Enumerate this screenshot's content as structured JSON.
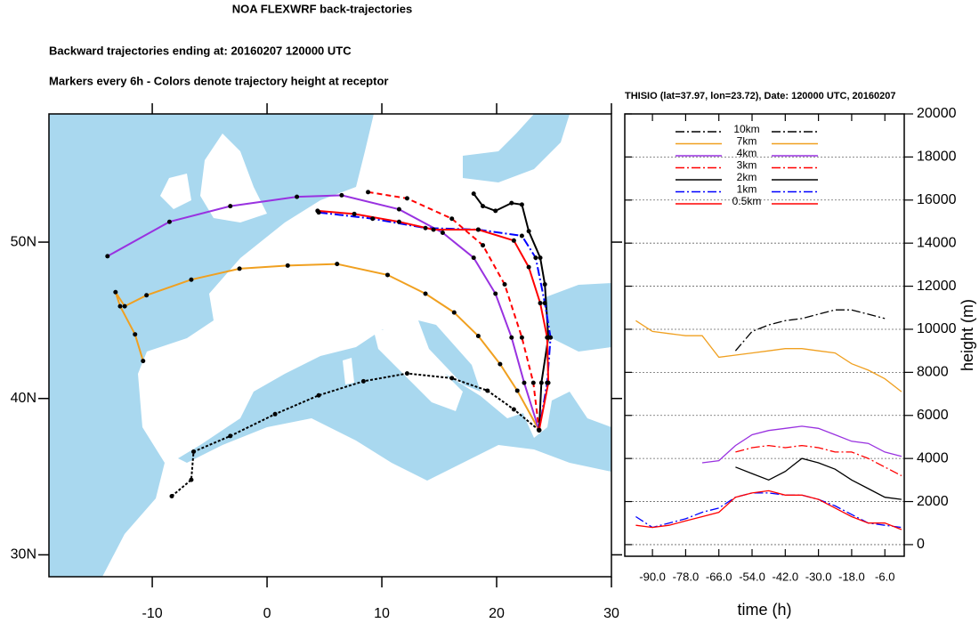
{
  "header": {
    "title": "NOA FLEXWRF back-trajectories",
    "lines": [
      "Backward trajectories ending at: 20160207  120000 UTC",
      "Markers every 6h - Colors denote trajectory height at receptor"
    ]
  },
  "chart_data": [
    {
      "type": "map",
      "xlim": [
        -19,
        30
      ],
      "ylim": [
        28.6,
        58.2
      ],
      "xticks": [
        -10,
        0,
        10,
        20,
        30
      ],
      "yticks": [
        {
          "value": 30,
          "label": "30N"
        },
        {
          "value": 40,
          "label": "40N"
        },
        {
          "value": 50,
          "label": "50N"
        }
      ],
      "marker_color": "#000000",
      "series": [
        {
          "color": "#000000",
          "linestyle": "dotted",
          "x": [
            -8.3,
            -6.6,
            -6.4,
            -3.2,
            0.7,
            4.5,
            8.4,
            12.2,
            16.1,
            19.2,
            21.5,
            23.7
          ],
          "values": [
            33.75,
            34.8,
            36.6,
            37.6,
            39.0,
            40.2,
            41.1,
            41.6,
            41.3,
            40.5,
            39.3,
            37.97
          ]
        },
        {
          "color": "#f0a020",
          "linestyle": "solid",
          "x": [
            -10.8,
            -11.5,
            -12.8,
            -13.2,
            -12.4,
            -10.5,
            -6.6,
            -2.4,
            1.8,
            6.1,
            10.5,
            13.8,
            16.3,
            18.4,
            20.3,
            21.8,
            23.7
          ],
          "values": [
            42.4,
            44.1,
            45.9,
            46.8,
            45.9,
            46.6,
            47.6,
            48.3,
            48.5,
            48.6,
            47.9,
            46.7,
            45.5,
            44.0,
            42.2,
            40.5,
            37.97
          ]
        },
        {
          "color": "#9932e0",
          "linestyle": "solid",
          "x": [
            -13.9,
            -8.5,
            -3.2,
            2.6,
            6.5,
            11.5,
            15.3,
            18.0,
            19.9,
            21.3,
            22.4,
            23.7
          ],
          "values": [
            49.1,
            51.3,
            52.3,
            52.9,
            53.0,
            52.1,
            50.6,
            49.0,
            46.7,
            43.9,
            41.0,
            37.97
          ]
        },
        {
          "color": "#ff0000",
          "linestyle": "dashed",
          "x": [
            8.8,
            12.2,
            16.1,
            18.8,
            20.7,
            22.2,
            23.2,
            23.7
          ],
          "values": [
            53.2,
            52.8,
            51.5,
            49.8,
            47.3,
            43.9,
            41.0,
            37.97
          ]
        },
        {
          "color": "#000000",
          "linestyle": "solid",
          "x": [
            18.0,
            18.8,
            19.9,
            21.3,
            22.2,
            22.8,
            23.8,
            24.2,
            24.5,
            23.9,
            23.7
          ],
          "values": [
            53.1,
            52.3,
            52.0,
            52.5,
            52.4,
            50.7,
            49.0,
            47.3,
            43.9,
            41.0,
            37.97
          ]
        },
        {
          "color": "#0000ff",
          "linestyle": "dashdot",
          "x": [
            4.5,
            9.2,
            13.8,
            18.4,
            22.2,
            23.4,
            24.2,
            24.7,
            24.4,
            23.7
          ],
          "values": [
            51.9,
            51.5,
            50.9,
            50.8,
            50.4,
            49.0,
            46.1,
            43.9,
            41.0,
            37.97
          ]
        },
        {
          "color": "#ff0000",
          "linestyle": "solid",
          "x": [
            4.4,
            7.6,
            11.5,
            14.5,
            18.4,
            21.5,
            22.8,
            23.8,
            24.4,
            24.5,
            23.7
          ],
          "values": [
            52.0,
            51.8,
            51.3,
            50.8,
            50.8,
            50.1,
            48.4,
            46.1,
            43.9,
            41.0,
            37.97
          ]
        }
      ]
    },
    {
      "type": "line",
      "title": "THISIO (lat=37.97,  lon=23.72), Date: 120000 UTC, 20160207",
      "xlabel": "time (h)",
      "ylabel": "height (m)",
      "xlim": [
        -100,
        1
      ],
      "ylim": [
        -540,
        20000
      ],
      "xticks": [
        {
          "value": -90,
          "label": "-90.0"
        },
        {
          "value": -78,
          "label": "-78.0"
        },
        {
          "value": -66,
          "label": "-66.0"
        },
        {
          "value": -54,
          "label": "-54.0"
        },
        {
          "value": -42,
          "label": "-42.0"
        },
        {
          "value": -30,
          "label": "-30.0"
        },
        {
          "value": -18,
          "label": "-18.0"
        },
        {
          "value": -6,
          "label": "-6.0"
        }
      ],
      "yticks": [
        0,
        2000,
        4000,
        6000,
        8000,
        10000,
        12000,
        14000,
        16000,
        18000,
        20000
      ],
      "grid": true,
      "legend": "upper center",
      "x": [
        -96,
        -90,
        -84,
        -78,
        -72,
        -66,
        -60,
        -54,
        -48,
        -42,
        -36,
        -30,
        -24,
        -18,
        -12,
        -6,
        0
      ],
      "series": [
        {
          "name": "10km",
          "color": "#000000",
          "linestyle": "dashdot",
          "values": [
            null,
            null,
            null,
            null,
            null,
            null,
            9000,
            9900,
            10200,
            10400,
            10500,
            10700,
            10900,
            10900,
            10700,
            10500,
            null
          ]
        },
        {
          "name": "7km",
          "color": "#f0a020",
          "linestyle": "solid",
          "values": [
            10400,
            9900,
            9800,
            9700,
            9700,
            8700,
            8800,
            8900,
            9000,
            9100,
            9100,
            9000,
            8900,
            8400,
            8100,
            7700,
            7100
          ]
        },
        {
          "name": "4km",
          "color": "#9932e0",
          "linestyle": "solid",
          "values": [
            null,
            null,
            null,
            null,
            3800,
            3900,
            4600,
            5100,
            5300,
            5400,
            5500,
            5400,
            5100,
            4800,
            4700,
            4300,
            4100
          ]
        },
        {
          "name": "3km",
          "color": "#ff0000",
          "linestyle": "dashdot",
          "values": [
            null,
            null,
            null,
            null,
            null,
            null,
            4300,
            4500,
            4600,
            4500,
            4600,
            4500,
            4300,
            4300,
            4000,
            3600,
            3200
          ]
        },
        {
          "name": "2km",
          "color": "#000000",
          "linestyle": "solid",
          "values": [
            null,
            null,
            null,
            null,
            null,
            null,
            3600,
            3300,
            3000,
            3400,
            4000,
            3800,
            3500,
            3000,
            2600,
            2200,
            2100
          ]
        },
        {
          "name": "1km",
          "color": "#0000ff",
          "linestyle": "dashdot",
          "values": [
            1300,
            800,
            1000,
            1200,
            1500,
            1700,
            2200,
            2400,
            2400,
            2300,
            2300,
            2100,
            1800,
            1400,
            1000,
            900,
            800
          ]
        },
        {
          "name": "0.5km",
          "color": "#ff0000",
          "linestyle": "solid",
          "values": [
            900,
            800,
            900,
            1100,
            1300,
            1500,
            2200,
            2400,
            2500,
            2300,
            2300,
            2100,
            1700,
            1300,
            1000,
            1000,
            700
          ]
        }
      ]
    }
  ]
}
